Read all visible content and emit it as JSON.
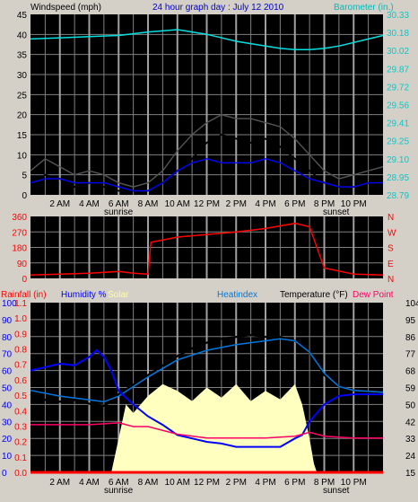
{
  "colors": {
    "background": "#d4d0c8",
    "plot_bg": "#000000",
    "grid": "#808080",
    "wind_speed": "#000000",
    "wind_gust": "#555555",
    "wind_avg": "#0000ff",
    "barometer": "#00e0e0",
    "direction": "#ff0000",
    "rainfall": "#ff0000",
    "humidity": "#0000ff",
    "solar": "#ffffc0",
    "heatindex": "#0077dd",
    "temperature": "#000000",
    "dewpoint": "#ff0066"
  },
  "chart_data": [
    {
      "type": "line",
      "panel": "wind",
      "title": "24 hour graph day : July 12 2010",
      "ylabel": "Windspeed (mph)",
      "y2label": "Barometer (in.)",
      "ylim": [
        0,
        45
      ],
      "y_ticks": [
        "0",
        "5",
        "10",
        "15",
        "20",
        "25",
        "30",
        "35",
        "40",
        "45"
      ],
      "y2lim": [
        28.79,
        30.33
      ],
      "y2_ticks": [
        "28.79",
        "28.95",
        "29.10",
        "29.25",
        "29.41",
        "29.56",
        "29.72",
        "29.87",
        "30.02",
        "30.18",
        "30.33"
      ],
      "x_ticks": [
        "2 AM",
        "4 AM",
        "6 AM",
        "8 AM",
        "10 AM",
        "12 PM",
        "2 PM",
        "4 PM",
        "6 PM",
        "8 PM",
        "10 PM"
      ],
      "x_markers": [
        "sunrise",
        "sunset"
      ],
      "series": [
        {
          "role": "wind_speed",
          "x": [
            0,
            1,
            2,
            3,
            4,
            5,
            6,
            7,
            8,
            9,
            10,
            11,
            12,
            13,
            14,
            15,
            16,
            17,
            18,
            19,
            20,
            21,
            22,
            23,
            24
          ],
          "values": [
            3,
            5,
            4,
            2,
            3,
            2,
            1,
            1,
            1,
            3,
            6,
            9,
            13,
            15,
            14,
            13,
            14,
            12,
            9,
            6,
            3,
            2,
            2,
            3,
            4
          ]
        },
        {
          "role": "wind_gust",
          "x": [
            0,
            1,
            2,
            3,
            4,
            5,
            6,
            7,
            8,
            9,
            10,
            11,
            12,
            13,
            14,
            15,
            16,
            17,
            18,
            19,
            20,
            21,
            22,
            23,
            24
          ],
          "values": [
            6,
            9,
            7,
            5,
            6,
            5,
            3,
            2,
            3,
            6,
            11,
            15,
            18,
            20,
            19,
            19,
            18,
            17,
            14,
            10,
            6,
            4,
            5,
            6,
            7
          ]
        },
        {
          "role": "wind_avg",
          "x": [
            0,
            1,
            2,
            3,
            4,
            5,
            6,
            7,
            8,
            9,
            10,
            11,
            12,
            13,
            14,
            15,
            16,
            17,
            18,
            19,
            20,
            21,
            22,
            23,
            24
          ],
          "values": [
            3,
            4,
            4,
            3,
            3,
            3,
            2,
            1,
            1,
            3,
            6,
            8,
            9,
            8,
            8,
            8,
            9,
            8,
            6,
            4,
            3,
            2,
            2,
            3,
            3
          ]
        },
        {
          "role": "barometer",
          "axis": "right",
          "x": [
            0,
            2,
            4,
            6,
            8,
            10,
            12,
            14,
            16,
            17,
            18,
            19,
            20,
            21,
            22,
            23,
            24
          ],
          "values": [
            30.12,
            30.13,
            30.14,
            30.15,
            30.18,
            30.2,
            30.16,
            30.1,
            30.06,
            30.04,
            30.03,
            30.03,
            30.04,
            30.06,
            30.09,
            30.12,
            30.15
          ]
        }
      ]
    },
    {
      "type": "line",
      "panel": "direction",
      "ylim": [
        0,
        360
      ],
      "y_ticks": [
        "0",
        "90",
        "180",
        "270",
        "360"
      ],
      "y2_ticks": [
        "N",
        "E",
        "S",
        "W",
        "N"
      ],
      "x_ticks": [
        "2 AM",
        "4 AM",
        "6 AM",
        "8 AM",
        "10 AM",
        "12 PM",
        "2 PM",
        "4 PM",
        "6 PM",
        "8 PM",
        "10 PM"
      ],
      "series": [
        {
          "role": "direction",
          "x": [
            0,
            2,
            4,
            6,
            7,
            8,
            8.2,
            10,
            12,
            14,
            16,
            18,
            19,
            19.5,
            20,
            22,
            24
          ],
          "values": [
            20,
            25,
            30,
            40,
            30,
            25,
            210,
            240,
            255,
            270,
            290,
            320,
            300,
            180,
            60,
            25,
            20
          ]
        }
      ]
    },
    {
      "type": "line",
      "panel": "temperature",
      "ylabel": "Rainfall (in)",
      "ylabel2": "Humidity %",
      "ylabel3": "Solar",
      "legend": [
        "Heatindex",
        "Temperature (°F)",
        "Dew Point"
      ],
      "ylim_rain": [
        0,
        1.1
      ],
      "rain_ticks": [
        "0.0",
        "0.1",
        "0.2",
        "0.3",
        "0.4",
        "0.5",
        "0.6",
        "0.7",
        "0.8",
        "0.9",
        "1.0",
        "1.1"
      ],
      "humidity_ticks": [
        "0",
        "10",
        "20",
        "30",
        "40",
        "50",
        "60",
        "70",
        "80",
        "90",
        "100"
      ],
      "ylim_temp": [
        15,
        104
      ],
      "temp_ticks": [
        "15",
        "24",
        "33",
        "42",
        "50",
        "59",
        "68",
        "77",
        "86",
        "95",
        "104"
      ],
      "x_ticks": [
        "2 AM",
        "4 AM",
        "6 AM",
        "8 AM",
        "10 AM",
        "12 PM",
        "2 PM",
        "4 PM",
        "6 PM",
        "8 PM",
        "10 PM"
      ],
      "x_markers": [
        "sunrise",
        "sunset"
      ],
      "series": [
        {
          "role": "temperature",
          "x": [
            0,
            1,
            2,
            3,
            4,
            5,
            5.5,
            6,
            7,
            8,
            9,
            10,
            11,
            12,
            13,
            14,
            15,
            16,
            17,
            18,
            19,
            20,
            21,
            22,
            23,
            24
          ],
          "values": [
            56,
            53,
            52,
            53,
            51,
            50,
            52,
            56,
            61,
            66,
            71,
            76,
            80,
            83,
            85,
            86,
            87,
            86,
            86,
            84,
            78,
            66,
            60,
            58,
            57,
            57
          ]
        },
        {
          "role": "heatindex",
          "x": [
            0,
            2,
            4,
            5,
            6,
            8,
            10,
            12,
            14,
            16,
            17,
            18,
            19,
            20,
            21,
            22,
            24
          ],
          "values": [
            58,
            55,
            53,
            52,
            55,
            65,
            74,
            79,
            82,
            84,
            85,
            84,
            78,
            67,
            60,
            58,
            57
          ]
        },
        {
          "role": "humidity",
          "x": [
            0,
            1,
            2,
            3,
            4,
            4.5,
            5,
            5.5,
            6,
            7,
            8,
            9,
            10,
            11,
            12,
            13,
            14,
            15,
            16,
            17,
            18,
            18.5,
            19,
            20,
            21,
            22,
            23,
            24
          ],
          "values": [
            60,
            62,
            64,
            63,
            68,
            72,
            68,
            60,
            48,
            40,
            33,
            28,
            22,
            20,
            18,
            17,
            15,
            15,
            15,
            15,
            20,
            22,
            30,
            40,
            45,
            46,
            46,
            46
          ]
        },
        {
          "role": "dewpoint",
          "x": [
            0,
            2,
            4,
            6,
            7,
            8,
            10,
            12,
            14,
            16,
            18,
            19,
            20,
            22,
            24
          ],
          "values": [
            40,
            40,
            40,
            41,
            39,
            39,
            35,
            33,
            33,
            33,
            34,
            36,
            34,
            33,
            33
          ]
        },
        {
          "role": "solar",
          "x": [
            5.5,
            6,
            6.5,
            7,
            8,
            9,
            10,
            11,
            12,
            13,
            14,
            15,
            16,
            17,
            18,
            18.5,
            19,
            19.3,
            19.5
          ],
          "values": [
            0,
            20,
            40,
            35,
            45,
            52,
            48,
            42,
            50,
            44,
            52,
            42,
            48,
            43,
            52,
            40,
            20,
            5,
            0
          ]
        },
        {
          "role": "rainfall",
          "x": [
            0,
            24
          ],
          "values": [
            0,
            0
          ]
        }
      ]
    }
  ]
}
